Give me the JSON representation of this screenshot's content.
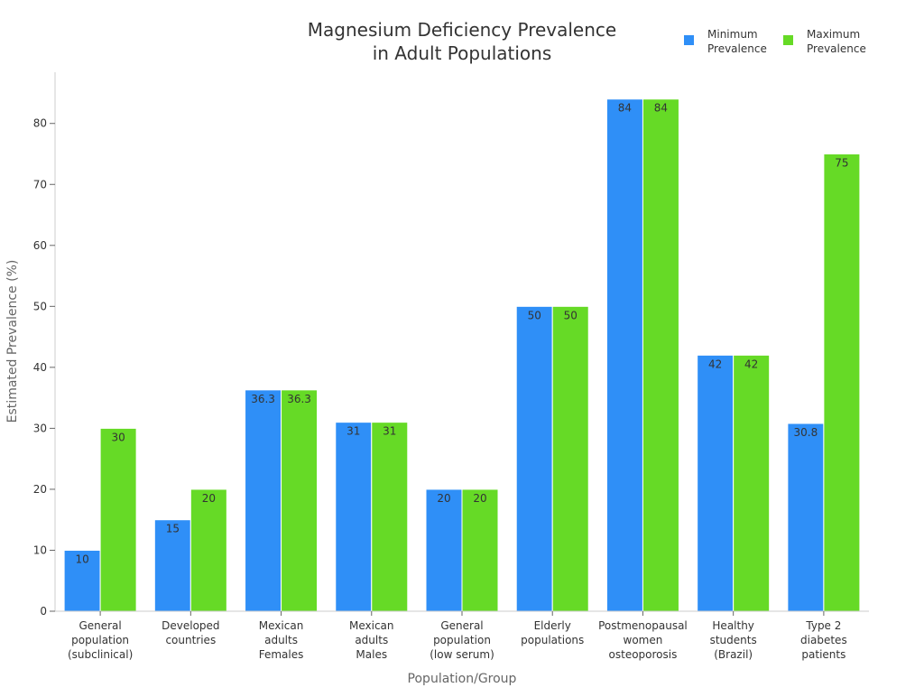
{
  "chart_data": {
    "type": "bar",
    "title": "Magnesium Deficiency Prevalence\nin Adult Populations",
    "xlabel": "Population/Group",
    "ylabel": "Estimated Prevalence (%)",
    "ylim": [
      0,
      88.4
    ],
    "yticks": [
      0,
      10,
      20,
      30,
      40,
      50,
      60,
      70,
      80
    ],
    "grid": false,
    "legend_placement": "top-right",
    "categories": [
      "General\npopulation\n(subclinical)",
      "Developed\ncountries",
      "Mexican\nadults\nFemales",
      "Mexican\nadults\nMales",
      "General\npopulation\n(low serum)",
      "Elderly\npopulations",
      "Postmenopausal\nwomen\nosteoporosis",
      "Healthy\nstudents\n(Brazil)",
      "Type 2\ndiabetes\npatients"
    ],
    "series": [
      {
        "name": "Minimum\nPrevalence",
        "color": "#2F8FF7",
        "values": [
          10,
          15,
          36.3,
          31,
          20,
          50,
          84,
          42,
          30.8
        ]
      },
      {
        "name": "Maximum\nPrevalence",
        "color": "#66DA26",
        "values": [
          30,
          20,
          36.3,
          31,
          20,
          50,
          84,
          42,
          75
        ]
      }
    ]
  }
}
